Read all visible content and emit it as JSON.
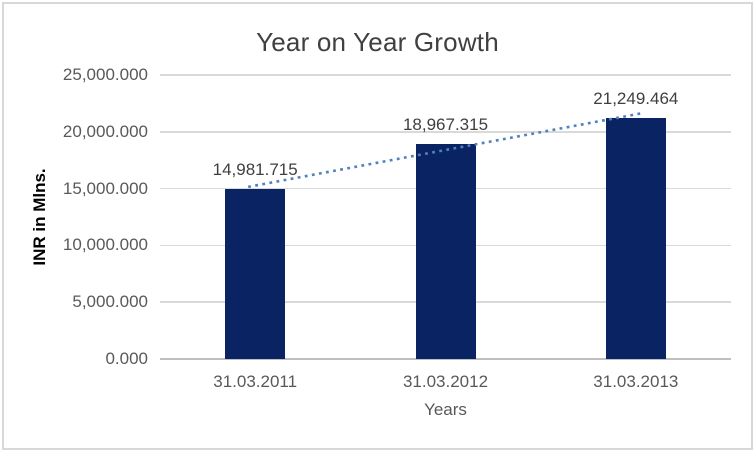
{
  "chart_data": {
    "type": "bar",
    "title": "Year on Year Growth",
    "categories": [
      "31.03.2011",
      "31.03.2012",
      "31.03.2013"
    ],
    "values": [
      14981.715,
      18967.315,
      21249.464
    ],
    "data_labels": [
      "14,981.715",
      "18,967.315",
      "21,249.464"
    ],
    "xlabel": "Years",
    "ylabel": "INR in Mlns.",
    "ylim": [
      0,
      25000
    ],
    "ytick_interval": 5000,
    "ytick_labels": [
      "0.000",
      "5,000.000",
      "10,000.000",
      "15,000.000",
      "20,000.000",
      "25,000.000"
    ],
    "grid": true,
    "legend": "none",
    "trendline": {
      "type": "linear",
      "style": "dotted"
    }
  },
  "colors": {
    "bar_fill": "#0A2463",
    "trendline": "#4E81BD",
    "gridline": "#D9D9D9",
    "axis_line": "#BFBFBF",
    "border": "#D8D8D8",
    "title_text": "#404040",
    "tick_text": "#595959",
    "data_label_text": "#3F3F3F"
  }
}
